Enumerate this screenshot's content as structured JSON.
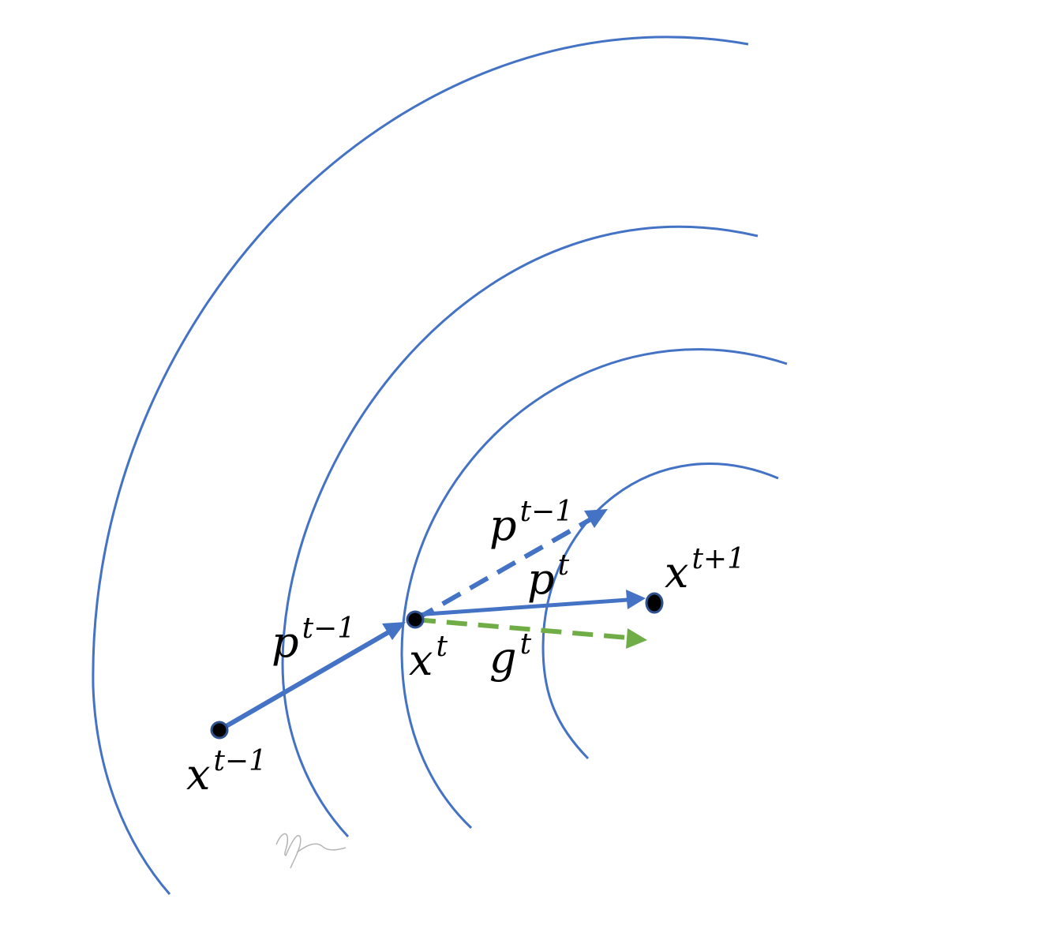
{
  "points": [
    {
      "id": "x_prev",
      "label_base": "x",
      "label_sup": "t−1"
    },
    {
      "id": "x_curr",
      "label_base": "x",
      "label_sup": "t"
    },
    {
      "id": "x_next",
      "label_base": "x",
      "label_sup": "t+1"
    }
  ],
  "vectors": [
    {
      "id": "p_prev_step",
      "label_base": "p",
      "label_sup": "t−1",
      "style": "solid",
      "color": "#4472C4"
    },
    {
      "id": "p_prev_momentum",
      "label_base": "p",
      "label_sup": "t−1",
      "style": "dashed",
      "color": "#4472C4"
    },
    {
      "id": "p_curr",
      "label_base": "p",
      "label_sup": "t",
      "style": "solid",
      "color": "#4472C4"
    },
    {
      "id": "g_curr",
      "label_base": "g",
      "label_sup": "t",
      "style": "dashed",
      "color": "#70AD47"
    }
  ],
  "colors": {
    "contour": "#4472C4",
    "momentum": "#4472C4",
    "gradient": "#70AD47",
    "point_fill": "#000000"
  }
}
